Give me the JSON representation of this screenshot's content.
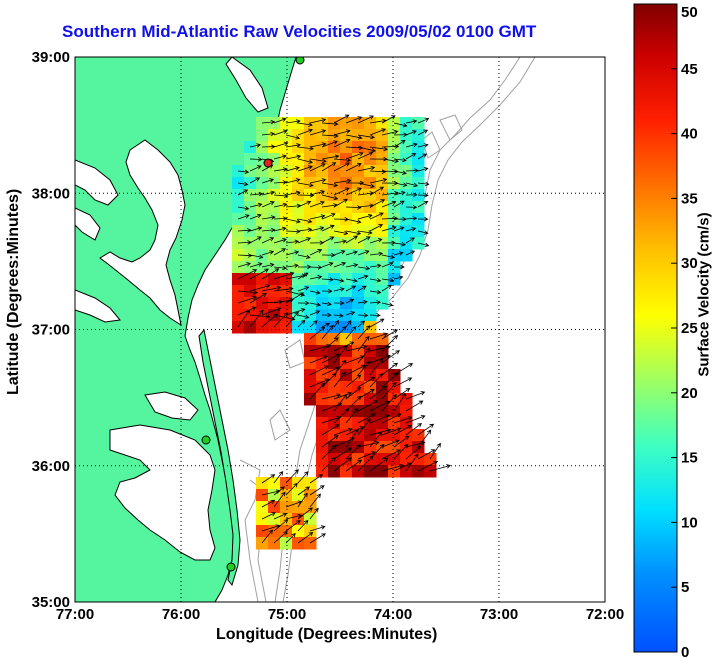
{
  "title": "Southern Mid-Atlantic Raw Velocities 2009/05/02 0100 GMT",
  "xlabel": "Longitude (Degrees:Minutes)",
  "ylabel": "Latitude (Degrees:Minutes)",
  "colorbar": {
    "label": "Surface Velocity (cm/s)",
    "ticks": [
      "0",
      "5",
      "10",
      "15",
      "20",
      "25",
      "30",
      "35",
      "40",
      "45",
      "50"
    ],
    "min": 0,
    "max": 50
  },
  "map": {
    "x_ticks": [
      "77:00",
      "76:00",
      "75:00",
      "74:00",
      "73:00",
      "72:00"
    ],
    "y_ticks": [
      "39:00",
      "38:00",
      "37:00",
      "36:00",
      "35:00"
    ],
    "lon_range": [
      -77,
      -72
    ],
    "lat_range": [
      35,
      39
    ],
    "colors": {
      "land": "#55f5a0",
      "water": "#ffffff",
      "coastline": "#000000",
      "bathymetry": "#a0a0a0",
      "grid": "#000000",
      "site_marker": "#22cc22",
      "site_marker_alt": "#dd2222"
    }
  }
}
